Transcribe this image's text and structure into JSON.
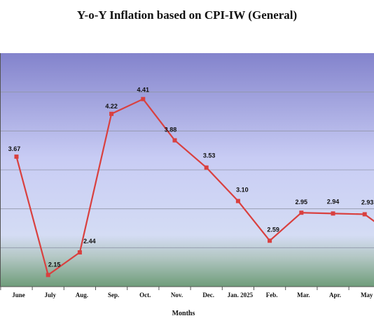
{
  "chart_data": {
    "type": "line",
    "title": "Y-o-Y Inflation based on CPI-IW (General)",
    "xlabel": "Months",
    "ylabel": "",
    "categories": [
      "June",
      "July",
      "Aug.",
      "Sep.",
      "Oct.",
      "Nov.",
      "Dec.",
      "Jan. 2025",
      "Feb.",
      "Mar.",
      "Apr.",
      "May"
    ],
    "series": [
      {
        "values": [
          3.67,
          2.15,
          2.44,
          4.22,
          4.41,
          3.88,
          3.53,
          3.1,
          2.59,
          2.95,
          2.94,
          2.93
        ],
        "labels": [
          "3.67",
          "2.15",
          "2.44",
          "4.22",
          "4.41",
          "3.88",
          "3.53",
          "3.10",
          "2.59",
          "2.95",
          "2.94",
          "2.93"
        ],
        "color": "#d9403f"
      }
    ],
    "trailing_value": 2.75,
    "ylim": [
      2.0,
      5.0
    ],
    "gridlines": [
      2.5,
      3.0,
      3.5,
      4.0,
      4.5
    ],
    "grid": true,
    "legend": "none",
    "background_top": "#8383cc",
    "background_mid": "#c8ccf4",
    "background_bottom": "#6f9d7a"
  }
}
